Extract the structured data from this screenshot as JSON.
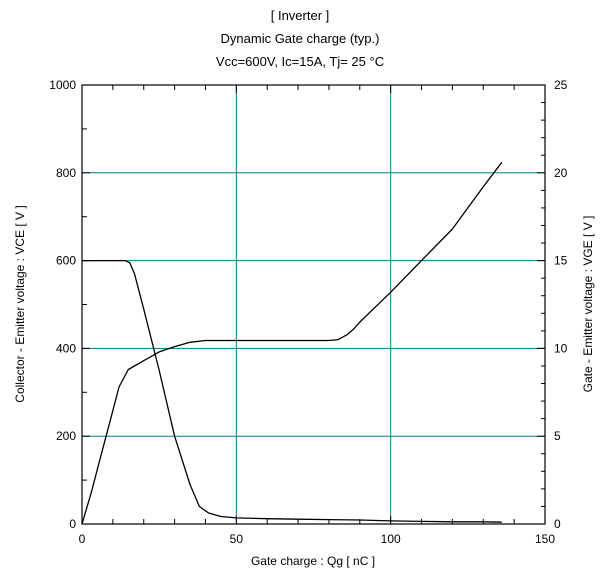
{
  "chart_data": {
    "type": "line",
    "title": "[ Inverter ]",
    "subtitle": "Dynamic Gate charge  (typ.)",
    "conditions_prefix": "Vcc=600V, Ic=15A, Tj= 25 ",
    "conditions_unit": "°C",
    "xlabel": "Gate charge  :  Qg  [ nC ]",
    "ylabel_left": "Collector - Emitter voltage  :  VCE  [ V ]",
    "ylabel_right": "Gate - Emitter voltage  :  VGE  [ V ]",
    "xlim": [
      0,
      150
    ],
    "ylim_left": [
      0,
      1000
    ],
    "ylim_right": [
      0,
      25
    ],
    "x_ticks": [
      "0",
      "50",
      "100",
      "150"
    ],
    "y_ticks_left": [
      "0",
      "200",
      "400",
      "600",
      "800",
      "1000"
    ],
    "y_ticks_right": [
      "0",
      "5",
      "10",
      "15",
      "20",
      "25"
    ],
    "grid": true,
    "grid_color": "#008080",
    "series": [
      {
        "axis": "left",
        "color": "#000000",
        "x": [
          0,
          14,
          15.5,
          17,
          20,
          25,
          30,
          35,
          38,
          41,
          45,
          50,
          60,
          70,
          80,
          90,
          100,
          110,
          120,
          130,
          136
        ],
        "y": [
          600,
          600,
          595,
          570,
          490,
          350,
          200,
          90,
          40,
          25,
          17,
          14,
          12,
          11,
          10,
          9,
          7,
          6,
          5,
          5,
          4
        ]
      },
      {
        "axis": "right",
        "color": "#000000",
        "x": [
          0,
          3,
          6,
          9,
          12,
          15,
          17,
          20,
          25,
          30,
          35,
          40,
          50,
          60,
          70,
          80,
          83,
          86,
          88,
          90,
          100,
          110,
          120,
          130,
          136
        ],
        "y": [
          0,
          1.8,
          3.8,
          5.8,
          7.8,
          8.8,
          9.0,
          9.3,
          9.8,
          10.1,
          10.35,
          10.45,
          10.45,
          10.45,
          10.45,
          10.45,
          10.5,
          10.8,
          11.1,
          11.5,
          13.2,
          15.0,
          16.8,
          19.2,
          20.6
        ]
      }
    ]
  }
}
